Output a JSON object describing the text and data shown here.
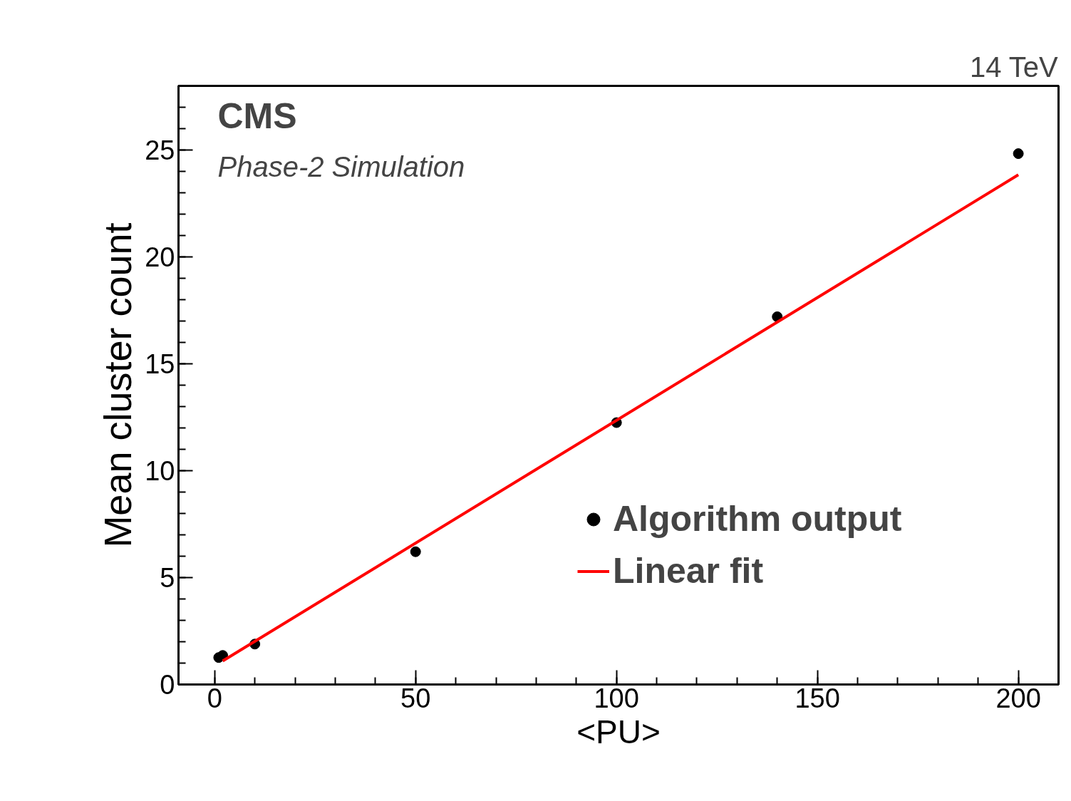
{
  "chart_data": {
    "type": "scatter",
    "xlabel": "<PU>",
    "ylabel": "Mean cluster count",
    "annotations": [
      "CMS",
      "Phase-2 Simulation",
      "14 TeV"
    ],
    "xlim": [
      -9,
      210
    ],
    "ylim": [
      0,
      28
    ],
    "xticks": [
      0,
      50,
      100,
      150,
      200
    ],
    "yticks": [
      0,
      5,
      10,
      15,
      20,
      25
    ],
    "legend": "bottom right",
    "grid": false,
    "series": [
      {
        "name": "Algorithm output",
        "marker": "circle",
        "color": "#000000",
        "x": [
          1,
          2,
          10,
          50,
          100,
          140,
          200
        ],
        "values": [
          1.26,
          1.36,
          1.89,
          6.21,
          12.25,
          17.2,
          24.83
        ]
      },
      {
        "name": "Linear fit",
        "type": "line",
        "color": "#ff0000",
        "x": [
          2,
          200
        ],
        "values": [
          1.1,
          23.84
        ]
      }
    ]
  }
}
